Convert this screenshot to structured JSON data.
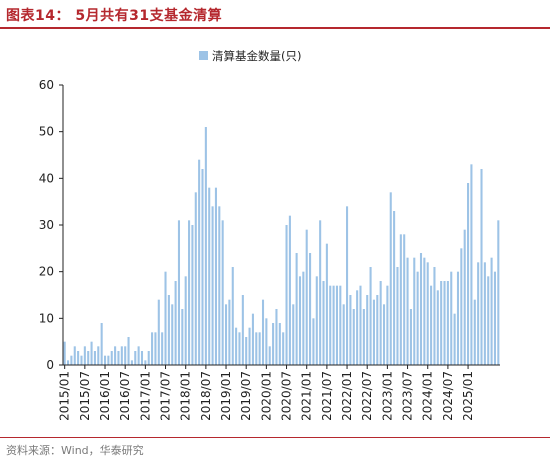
{
  "header": {
    "title": "图表14：  5月共有31支基金清算"
  },
  "footer": {
    "source": "资料来源：Wind，华泰研究"
  },
  "colors": {
    "accent": "#b5282e",
    "bar": "#9dc3e6",
    "axis": "#222222"
  },
  "chart_data": {
    "type": "bar",
    "series": [
      {
        "name": "清算基金数量(只)",
        "values": [
          5,
          1,
          2,
          4,
          3,
          2,
          4,
          3,
          5,
          3,
          4,
          9,
          2,
          2,
          3,
          4,
          3,
          4,
          4,
          6,
          1,
          3,
          4,
          3,
          1,
          3,
          7,
          7,
          14,
          7,
          20,
          15,
          13,
          18,
          31,
          12,
          19,
          31,
          30,
          37,
          44,
          42,
          51,
          38,
          34,
          38,
          34,
          31,
          13,
          14,
          21,
          8,
          7,
          15,
          6,
          8,
          11,
          7,
          7,
          14,
          10,
          4,
          9,
          12,
          9,
          7,
          30,
          32,
          13,
          24,
          19,
          20,
          29,
          24,
          10,
          19,
          31,
          18,
          26,
          17,
          17,
          17,
          17,
          13,
          34,
          15,
          12,
          16,
          17,
          12,
          15,
          21,
          14,
          15,
          18,
          13,
          17,
          37,
          33,
          21,
          28,
          28,
          23,
          12,
          23,
          20,
          24,
          23,
          22,
          17,
          21,
          16,
          18,
          18,
          18,
          20,
          11,
          20,
          25,
          29,
          39,
          43,
          14,
          22,
          42,
          22,
          19,
          23,
          20,
          31
        ]
      }
    ],
    "categories_first": "2015/01",
    "xticks": [
      "2015/01",
      "2015/07",
      "2016/01",
      "2016/07",
      "2017/01",
      "2017/07",
      "2018/01",
      "2018/07",
      "2019/01",
      "2019/07",
      "2020/01",
      "2020/07",
      "2021/01",
      "2021/07",
      "2022/01",
      "2022/07",
      "2023/01",
      "2023/07",
      "2024/01",
      "2024/07",
      "2025/01"
    ],
    "yticks": [
      "0",
      "10",
      "20",
      "30",
      "40",
      "50",
      "60"
    ],
    "ylim": [
      0,
      60
    ],
    "legend_position": "top-center",
    "grid": false
  }
}
